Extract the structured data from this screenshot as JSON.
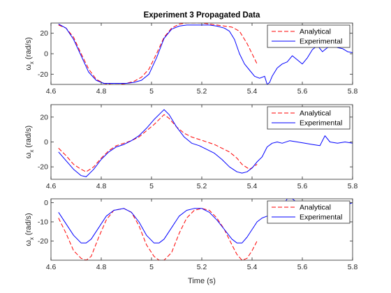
{
  "chart_data": [
    {
      "type": "line",
      "title": "Experiment 3 Propagated Data",
      "xlabel": "",
      "ylabel": "ω",
      "ylabel_sub": "x",
      "ylabel_unit": "(rad/s)",
      "xlim": [
        4.6,
        5.8
      ],
      "ylim": [
        -30,
        30
      ],
      "xticks": [
        4.6,
        4.8,
        5.0,
        5.2,
        5.4,
        5.6,
        5.8
      ],
      "xtick_labels": [
        "4.6",
        "4.8",
        "5",
        "5.2",
        "5.4",
        "5.6",
        "5.8"
      ],
      "yticks": [
        -20,
        0,
        20
      ],
      "ytick_labels": [
        "-20",
        "0",
        "20"
      ],
      "legend": {
        "position": "top-right",
        "entries": [
          "Analytical",
          "Experimental"
        ]
      },
      "series": [
        {
          "name": "Analytical",
          "color": "#ff0000",
          "style": "dashed",
          "x": [
            4.63,
            4.66,
            4.69,
            4.72,
            4.75,
            4.78,
            4.81,
            4.84,
            4.87,
            4.9,
            4.93,
            4.96,
            4.99,
            5.02,
            5.05,
            5.08,
            5.11,
            5.14,
            5.17,
            5.2,
            5.23,
            5.26,
            5.29,
            5.32,
            5.35,
            5.38,
            5.41,
            5.42
          ],
          "y": [
            28,
            25,
            16,
            0,
            -15,
            -25,
            -29,
            -30,
            -30,
            -29,
            -27,
            -23,
            -15,
            0,
            16,
            25,
            29,
            30,
            30,
            30,
            29,
            28,
            27,
            26,
            22,
            10,
            -5,
            -10
          ]
        },
        {
          "name": "Experimental",
          "color": "#0000ff",
          "style": "solid",
          "x": [
            4.63,
            4.66,
            4.69,
            4.72,
            4.75,
            4.78,
            4.81,
            4.84,
            4.87,
            4.9,
            4.93,
            4.96,
            4.99,
            5.02,
            5.05,
            5.08,
            5.11,
            5.14,
            5.17,
            5.2,
            5.23,
            5.26,
            5.29,
            5.31,
            5.33,
            5.35,
            5.37,
            5.39,
            5.41,
            5.43,
            5.45,
            5.46,
            5.47,
            5.48,
            5.5,
            5.52,
            5.54,
            5.56,
            5.58,
            5.6,
            5.62,
            5.64,
            5.66,
            5.68,
            5.7,
            5.72,
            5.74,
            5.76,
            5.78,
            5.8
          ],
          "y": [
            29,
            25,
            14,
            -2,
            -18,
            -26,
            -29,
            -29,
            -29,
            -29,
            -28,
            -26,
            -20,
            -4,
            15,
            24,
            27,
            28,
            28,
            28,
            28,
            27,
            25,
            22,
            14,
            0,
            -10,
            -16,
            -22,
            -24,
            -22,
            -30,
            -28,
            -22,
            -14,
            -10,
            -8,
            -2,
            -6,
            -10,
            -4,
            4,
            8,
            2,
            6,
            8,
            6,
            5,
            2,
            1
          ]
        }
      ]
    },
    {
      "type": "line",
      "title": "",
      "xlabel": "",
      "ylabel": "ω",
      "ylabel_sub": "x",
      "ylabel_unit": "(rad/s)",
      "xlim": [
        4.6,
        5.8
      ],
      "ylim": [
        -30,
        30
      ],
      "xticks": [
        4.6,
        4.8,
        5.0,
        5.2,
        5.4,
        5.6,
        5.8
      ],
      "xtick_labels": [
        "4.6",
        "4.8",
        "5",
        "5.2",
        "5.4",
        "5.6",
        "5.8"
      ],
      "yticks": [
        -20,
        0,
        20
      ],
      "ytick_labels": [
        "-20",
        "0",
        "20"
      ],
      "legend": {
        "position": "top-right",
        "entries": [
          "Analytical",
          "Experimental"
        ]
      },
      "series": [
        {
          "name": "Analytical",
          "color": "#ff0000",
          "style": "dashed",
          "x": [
            4.63,
            4.66,
            4.69,
            4.72,
            4.74,
            4.77,
            4.8,
            4.83,
            4.86,
            4.89,
            4.92,
            4.95,
            4.98,
            5.01,
            5.04,
            5.05,
            5.07,
            5.1,
            5.13,
            5.16,
            5.19,
            5.22,
            5.25,
            5.28,
            5.31,
            5.34,
            5.36,
            5.39,
            5.42
          ],
          "y": [
            -5,
            -11,
            -18,
            -22,
            -24,
            -20,
            -13,
            -7,
            -3,
            -1,
            1,
            4,
            9,
            14,
            20,
            22,
            19,
            12,
            7,
            4,
            2,
            0,
            -2,
            -5,
            -8,
            -13,
            -18,
            -22,
            -18
          ]
        },
        {
          "name": "Experimental",
          "color": "#0000ff",
          "style": "solid",
          "x": [
            4.63,
            4.66,
            4.69,
            4.72,
            4.74,
            4.77,
            4.8,
            4.83,
            4.86,
            4.89,
            4.92,
            4.95,
            4.98,
            5.01,
            5.04,
            5.05,
            5.07,
            5.1,
            5.13,
            5.16,
            5.19,
            5.22,
            5.25,
            5.28,
            5.31,
            5.34,
            5.36,
            5.38,
            5.4,
            5.42,
            5.44,
            5.46,
            5.48,
            5.5,
            5.52,
            5.55,
            5.58,
            5.61,
            5.64,
            5.67,
            5.69,
            5.71,
            5.74,
            5.77,
            5.8
          ],
          "y": [
            -8,
            -15,
            -22,
            -27,
            -28,
            -22,
            -14,
            -8,
            -4,
            -2,
            1,
            5,
            11,
            18,
            24,
            26,
            22,
            12,
            4,
            -1,
            -3,
            -6,
            -9,
            -14,
            -20,
            -24,
            -25,
            -24,
            -21,
            -16,
            -12,
            -4,
            -1,
            0,
            -1,
            1,
            0,
            -1,
            -2,
            -3,
            5,
            0,
            -1,
            0,
            -1
          ]
        }
      ]
    },
    {
      "type": "line",
      "title": "",
      "xlabel": "Time (s)",
      "ylabel": "ω",
      "ylabel_sub": "x",
      "ylabel_unit": "(rad/s)",
      "xlim": [
        4.6,
        5.8
      ],
      "ylim": [
        -30,
        2
      ],
      "xticks": [
        4.6,
        4.8,
        5.0,
        5.2,
        5.4,
        5.6,
        5.8
      ],
      "xtick_labels": [
        "4.6",
        "4.8",
        "5",
        "5.2",
        "5.4",
        "5.6",
        "5.8"
      ],
      "yticks": [
        -20,
        -10,
        0
      ],
      "ytick_labels": [
        "-20",
        "-10",
        "0"
      ],
      "legend": {
        "position": "top-right",
        "entries": [
          "Analytical",
          "Experimental"
        ]
      },
      "series": [
        {
          "name": "Analytical",
          "color": "#ff0000",
          "style": "dashed",
          "x": [
            4.63,
            4.66,
            4.69,
            4.72,
            4.74,
            4.76,
            4.79,
            4.82,
            4.85,
            4.89,
            4.92,
            4.95,
            4.98,
            5.01,
            5.03,
            5.05,
            5.08,
            5.11,
            5.14,
            5.17,
            5.2,
            5.23,
            5.26,
            5.29,
            5.32,
            5.34,
            5.36,
            5.38,
            5.4,
            5.42
          ],
          "y": [
            -8,
            -16,
            -25,
            -29,
            -30,
            -28,
            -18,
            -9,
            -4,
            -3,
            -5,
            -12,
            -22,
            -28,
            -30,
            -30,
            -26,
            -16,
            -8,
            -4,
            -3,
            -4,
            -8,
            -14,
            -22,
            -27,
            -30,
            -29,
            -25,
            -20
          ]
        },
        {
          "name": "Experimental",
          "color": "#0000ff",
          "style": "solid",
          "x": [
            4.63,
            4.66,
            4.69,
            4.72,
            4.74,
            4.76,
            4.79,
            4.82,
            4.85,
            4.89,
            4.92,
            4.95,
            4.98,
            5.01,
            5.03,
            5.05,
            5.08,
            5.11,
            5.14,
            5.17,
            5.2,
            5.23,
            5.26,
            5.29,
            5.32,
            5.34,
            5.36,
            5.38,
            5.4,
            5.42,
            5.44,
            5.46,
            5.49,
            5.52,
            5.54,
            5.56,
            5.58,
            5.6,
            5.63,
            5.66,
            5.69,
            5.72,
            5.75,
            5.78,
            5.8
          ],
          "y": [
            -5,
            -11,
            -17,
            -21,
            -21,
            -19,
            -13,
            -7,
            -4,
            -3,
            -5,
            -10,
            -17,
            -21,
            -21,
            -19,
            -13,
            -7,
            -4,
            -3,
            -3,
            -5,
            -9,
            -14,
            -19,
            -21,
            -21,
            -18,
            -14,
            -10,
            -8,
            -7,
            -5,
            -2,
            2,
            2,
            0,
            -3,
            -2,
            -1,
            -1,
            0,
            0,
            -1,
            0
          ]
        }
      ]
    }
  ]
}
